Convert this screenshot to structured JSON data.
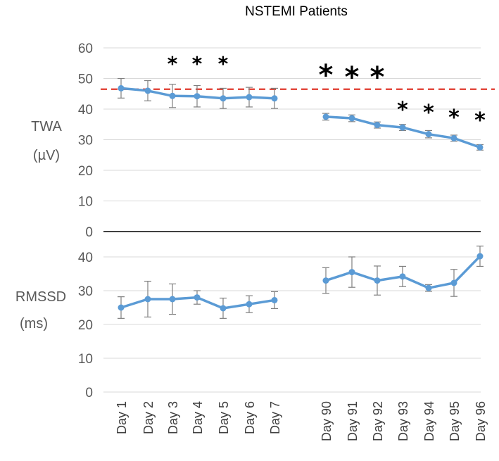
{
  "chart_data": {
    "type": "line",
    "title": "NSTEMI Patients",
    "categories": [
      "Day 1",
      "Day 2",
      "Day 3",
      "Day 4",
      "Day 5",
      "Day 6",
      "Day 7",
      "Day 90",
      "Day 91",
      "Day 92",
      "Day 93",
      "Day 94",
      "Day 95",
      "Day 96"
    ],
    "colors": {
      "series": "#5b9bd5",
      "threshold": "#e03a2c",
      "axis": "#000000",
      "grid": "#d9d9d9"
    },
    "panels": [
      {
        "id": "twa",
        "ylabel_lines": [
          "TWA",
          "(µV)"
        ],
        "ylim": [
          0,
          60
        ],
        "yticks": [
          0,
          10,
          20,
          30,
          40,
          50,
          60
        ],
        "threshold": 46.5,
        "series": [
          {
            "name": "TWA",
            "values": [
              46.8,
              46.0,
              44.3,
              44.2,
              43.5,
              43.9,
              43.5,
              37.5,
              37.0,
              34.8,
              34.0,
              31.8,
              30.5,
              27.5
            ],
            "errors": [
              3.2,
              3.3,
              3.8,
              3.5,
              3.3,
              3.2,
              3.3,
              1.1,
              1.1,
              1.0,
              1.0,
              1.2,
              1.0,
              0.9
            ]
          }
        ],
        "significance": [
          "",
          "",
          "*",
          "*",
          "*",
          "",
          "",
          "*",
          "*",
          "*",
          "*",
          "*",
          "*",
          "*"
        ]
      },
      {
        "id": "rmssd",
        "ylabel_lines": [
          "RMSSD",
          "(ms)"
        ],
        "ylim": [
          0,
          45
        ],
        "yticks": [
          0,
          10,
          20,
          30,
          40
        ],
        "series": [
          {
            "name": "RMSSD",
            "values": [
              25.0,
              27.5,
              27.5,
              28.0,
              24.8,
              26.0,
              27.2,
              33.0,
              35.5,
              33.0,
              34.2,
              30.8,
              32.3,
              40.2
            ],
            "errors": [
              3.2,
              5.3,
              4.5,
              2.0,
              3.0,
              2.5,
              2.5,
              3.8,
              4.5,
              4.3,
              3.0,
              1.0,
              4.0,
              3.0
            ]
          }
        ]
      }
    ]
  }
}
